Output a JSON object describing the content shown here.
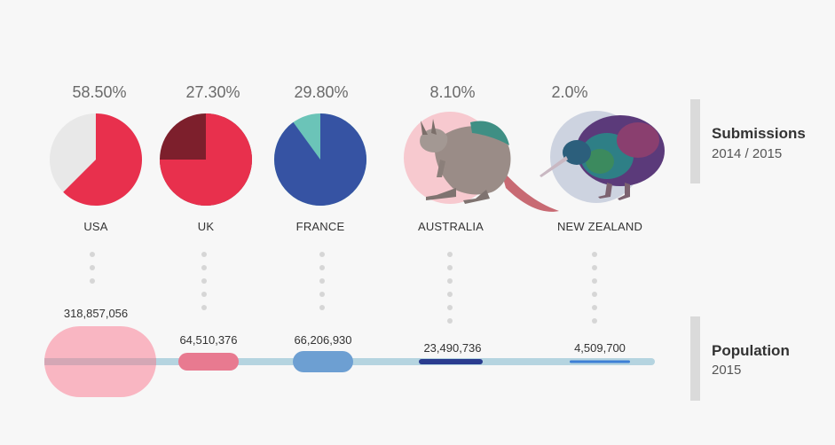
{
  "chart_data": {
    "type": "pie",
    "countries": [
      {
        "name": "USA",
        "submission_pct_label": "58.50%",
        "pie_value": 0.625,
        "colors": [
          "#e8304d",
          "#e8e8e8"
        ],
        "population_label": "318,857,056",
        "population": 318857056
      },
      {
        "name": "UK",
        "submission_pct_label": "27.30%",
        "pie_value": 0.75,
        "colors": [
          "#e8304d",
          "#7d1f2c"
        ],
        "population_label": "64,510,376",
        "population": 64510376
      },
      {
        "name": "FRANCE",
        "submission_pct_label": "29.80%",
        "pie_value": 0.9,
        "colors": [
          "#3653a3",
          "#6bc4b8"
        ],
        "population_label": "66,206,930",
        "population": 66206930
      },
      {
        "name": "AUSTRALIA",
        "submission_pct_label": "8.10%",
        "pie_value": null,
        "colors": [
          "#f7c9cf"
        ],
        "population_label": "23,490,736",
        "population": 23490736
      },
      {
        "name": "NEW ZEALAND",
        "submission_pct_label": "2.0%",
        "pie_value": null,
        "colors": [
          "#cdd3e0"
        ],
        "population_label": "4,509,700",
        "population": 4509700
      }
    ],
    "population_bar_colors": [
      "#f9aab8",
      "#e87a90",
      "#6d9fd2",
      "#2a3c8f",
      "#3d7fd6"
    ],
    "track_color": "#b5d4e0"
  },
  "legend": {
    "submissions_title": "Submissions",
    "submissions_years": "2014 / 2015",
    "population_title": "Population",
    "population_year": "2015"
  },
  "icons": [
    "kangaroo-illustration",
    "kiwi-bird-illustration"
  ]
}
